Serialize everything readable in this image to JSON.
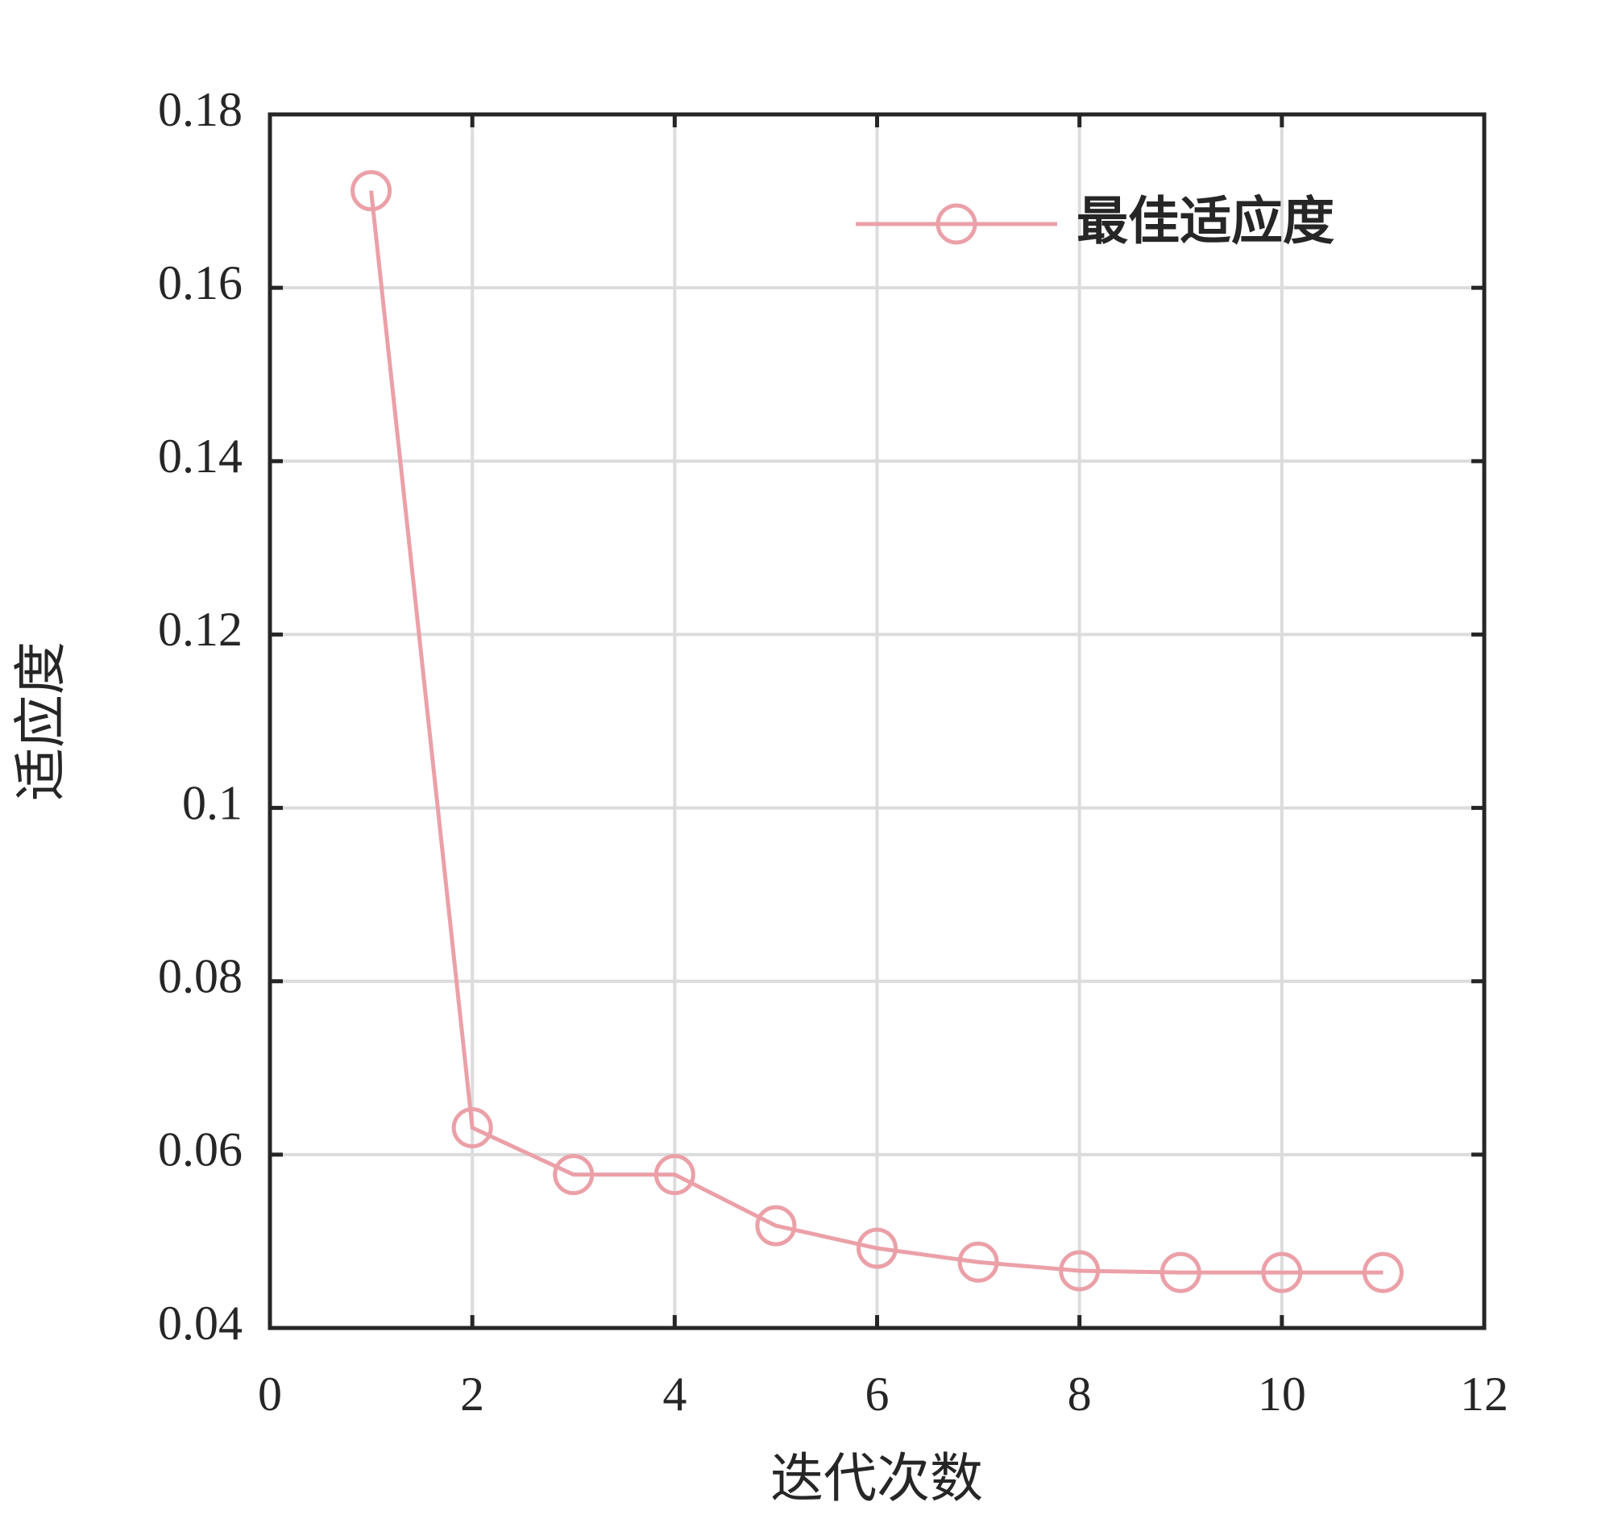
{
  "chart_data": {
    "type": "line",
    "xlabel": "迭代次数",
    "ylabel": "适应度",
    "x": [
      1,
      2,
      3,
      4,
      5,
      6,
      7,
      8,
      9,
      10,
      11
    ],
    "series": [
      {
        "name": "最佳适应度",
        "color": "#eba0a8",
        "values": [
          0.1712,
          0.0631,
          0.0577,
          0.0577,
          0.0518,
          0.0492,
          0.0476,
          0.0466,
          0.0464,
          0.0464,
          0.0464
        ]
      }
    ],
    "xlim": [
      0,
      12
    ],
    "xticks": [
      0,
      2,
      4,
      6,
      8,
      10,
      12
    ],
    "ylim": [
      0.04,
      0.18
    ],
    "yticks": [
      0.04,
      0.06,
      0.08,
      0.1,
      0.12,
      0.14,
      0.16,
      0.18
    ],
    "grid": true,
    "legend": "top-right"
  }
}
